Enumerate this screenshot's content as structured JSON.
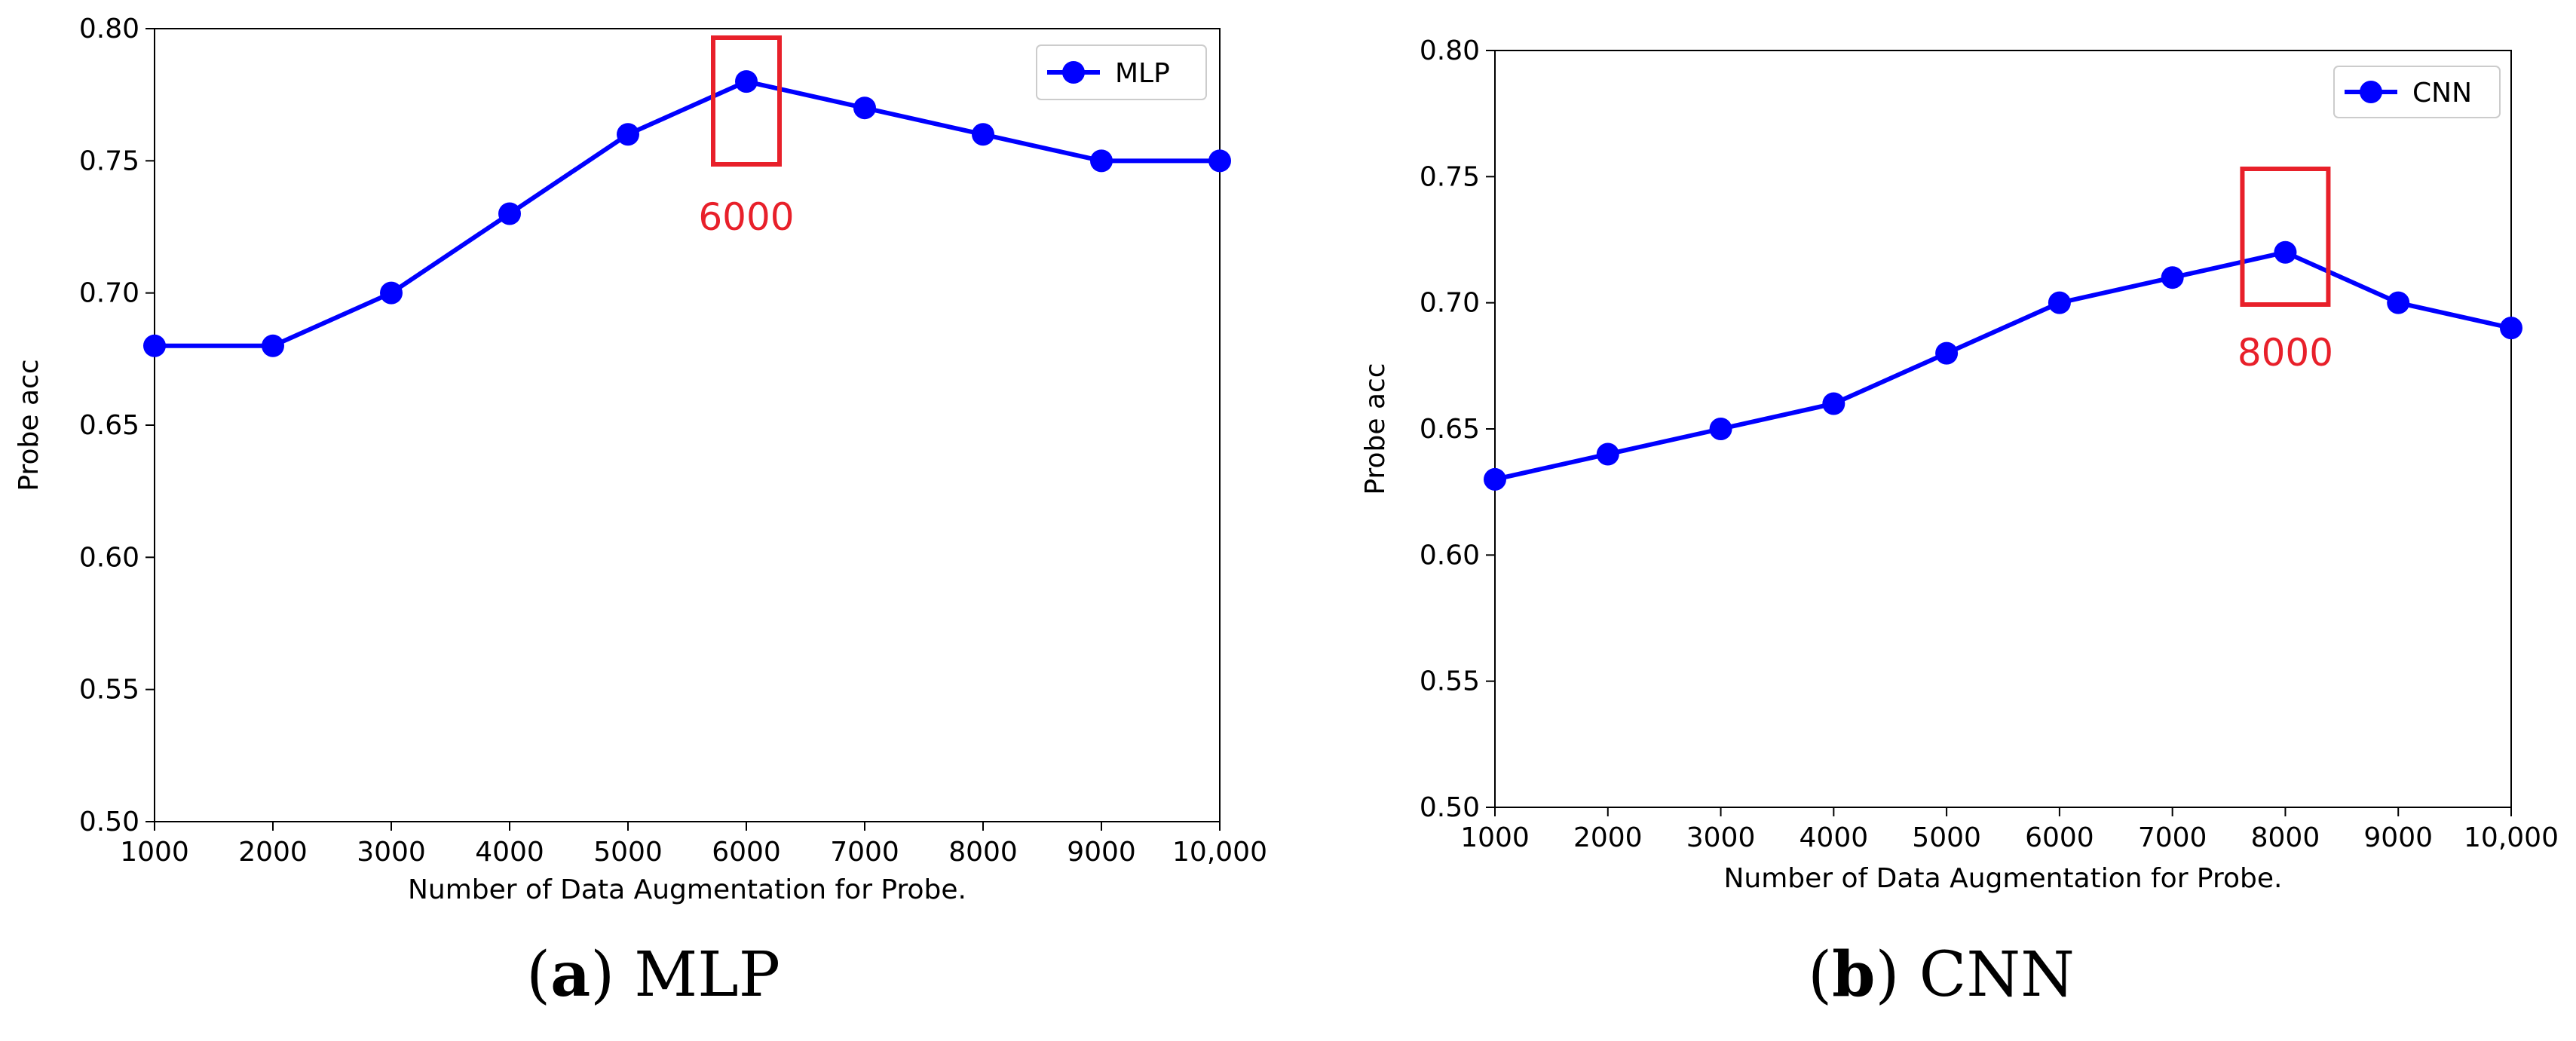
{
  "chart_data": [
    {
      "type": "line",
      "panel_label": "(a)",
      "panel_letter": "a",
      "caption_text": "MLP",
      "xlabel": "Number of Data Augmentation for Probe.",
      "ylabel": "Probe acc",
      "x": [
        1000,
        2000,
        3000,
        4000,
        5000,
        6000,
        7000,
        8000,
        9000,
        10000
      ],
      "x_tick_labels": [
        "1000",
        "2000",
        "3000",
        "4000",
        "5000",
        "6000",
        "7000",
        "8000",
        "9000",
        "10,000"
      ],
      "xlim": [
        1000,
        10000
      ],
      "ylim": [
        0.5,
        0.8
      ],
      "y_ticks": [
        0.5,
        0.55,
        0.6,
        0.65,
        0.7,
        0.75,
        0.8
      ],
      "y_tick_labels": [
        "0.50",
        "0.55",
        "0.60",
        "0.65",
        "0.70",
        "0.75",
        "0.80"
      ],
      "series": [
        {
          "name": "MLP",
          "color": "#0000ff",
          "values": [
            0.68,
            0.68,
            0.7,
            0.73,
            0.76,
            0.78,
            0.77,
            0.76,
            0.75,
            0.75
          ]
        }
      ],
      "legend": "top-right",
      "grid": false,
      "highlight": {
        "x": 6000,
        "label": "6000",
        "color": "#e8202a"
      }
    },
    {
      "type": "line",
      "panel_label": "(b)",
      "panel_letter": "b",
      "caption_text": "CNN",
      "xlabel": "Number of Data Augmentation for Probe.",
      "ylabel": "Probe acc",
      "x": [
        1000,
        2000,
        3000,
        4000,
        5000,
        6000,
        7000,
        8000,
        9000,
        10000
      ],
      "x_tick_labels": [
        "1000",
        "2000",
        "3000",
        "4000",
        "5000",
        "6000",
        "7000",
        "8000",
        "9000",
        "10,000"
      ],
      "xlim": [
        1000,
        10000
      ],
      "ylim": [
        0.5,
        0.8
      ],
      "y_ticks": [
        0.5,
        0.55,
        0.6,
        0.65,
        0.7,
        0.75,
        0.8
      ],
      "y_tick_labels": [
        "0.50",
        "0.55",
        "0.60",
        "0.65",
        "0.70",
        "0.75",
        "0.80"
      ],
      "series": [
        {
          "name": "CNN",
          "color": "#0000ff",
          "values": [
            0.63,
            0.64,
            0.65,
            0.66,
            0.68,
            0.7,
            0.71,
            0.72,
            0.7,
            0.69
          ]
        }
      ],
      "legend": "top-right",
      "grid": false,
      "highlight": {
        "x": 8000,
        "label": "8000",
        "color": "#e8202a"
      }
    }
  ]
}
